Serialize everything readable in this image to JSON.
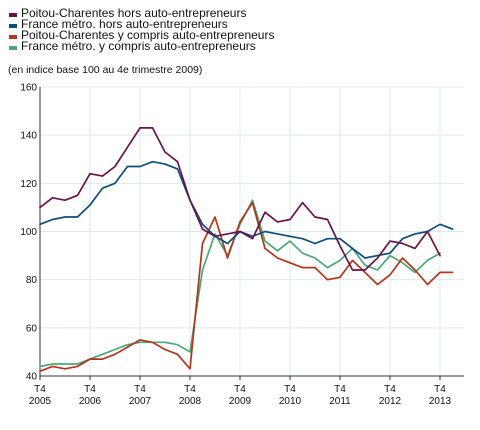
{
  "chart_data": {
    "type": "line",
    "subtitle": "(en indice base 100 au 4e trimestre 2009)",
    "ylim": [
      40,
      160
    ],
    "yticks": [
      40,
      60,
      80,
      100,
      120,
      140,
      160
    ],
    "x_period_labels": [
      {
        "top": "T4",
        "bottom": "2005"
      },
      {
        "top": "T4",
        "bottom": "2006"
      },
      {
        "top": "T4",
        "bottom": "2007"
      },
      {
        "top": "T4",
        "bottom": "2008"
      },
      {
        "top": "T4",
        "bottom": "2009"
      },
      {
        "top": "T4",
        "bottom": "2010"
      },
      {
        "top": "T4",
        "bottom": "2011"
      },
      {
        "top": "T4",
        "bottom": "2012"
      },
      {
        "top": "T4",
        "bottom": "2013"
      }
    ],
    "grid": true,
    "legend_position": "top-left",
    "x_quarters": [
      "T4 2005",
      "T1 2006",
      "T2 2006",
      "T3 2006",
      "T4 2006",
      "T1 2007",
      "T2 2007",
      "T3 2007",
      "T4 2007",
      "T1 2008",
      "T2 2008",
      "T3 2008",
      "T4 2008",
      "T1 2009",
      "T2 2009",
      "T3 2009",
      "T4 2009",
      "T1 2010",
      "T2 2010",
      "T3 2010",
      "T4 2010",
      "T1 2011",
      "T2 2011",
      "T3 2011",
      "T4 2011",
      "T1 2012",
      "T2 2012",
      "T3 2012",
      "T4 2012",
      "T1 2013",
      "T2 2013",
      "T3 2013",
      "T4 2013",
      "T1 2014"
    ],
    "series": [
      {
        "name": "Poitou-Charentes hors auto-entrepreneurs",
        "color": "#6b1347",
        "values": [
          110,
          114,
          113,
          115,
          124,
          123,
          127,
          135,
          143,
          143,
          133,
          129,
          113,
          101,
          98,
          99,
          100,
          97,
          108,
          104,
          105,
          112,
          106,
          105,
          94,
          84,
          84,
          89,
          96,
          95,
          93,
          100,
          90,
          null
        ]
      },
      {
        "name": "France métro. hors auto-entrepreneurs",
        "color": "#0b4e7a",
        "values": [
          103,
          105,
          106,
          106,
          111,
          118,
          120,
          127,
          127,
          129,
          128,
          126,
          113,
          103,
          98,
          95,
          100,
          98,
          100,
          99,
          98,
          97,
          95,
          97,
          97,
          93,
          89,
          90,
          91,
          97,
          99,
          100,
          103,
          101
        ]
      },
      {
        "name": "Poitou-Charentes y compris auto-entrepreneurs",
        "color": "#b5341a",
        "values": [
          42,
          44,
          43,
          44,
          47,
          47,
          49,
          52,
          55,
          54,
          51,
          49,
          43,
          95,
          106,
          89,
          104,
          112,
          93,
          89,
          87,
          85,
          85,
          80,
          81,
          88,
          83,
          78,
          82,
          89,
          84,
          78,
          83,
          83
        ]
      },
      {
        "name": "France métro. y compris auto-entrepreneurs",
        "color": "#4aa87a",
        "values": [
          44,
          45,
          45,
          45,
          47,
          49,
          51,
          53,
          54,
          54,
          54,
          53,
          50,
          84,
          99,
          90,
          103,
          113,
          96,
          92,
          96,
          91,
          89,
          85,
          88,
          93,
          86,
          84,
          90,
          87,
          83,
          88,
          91,
          null
        ]
      }
    ]
  }
}
